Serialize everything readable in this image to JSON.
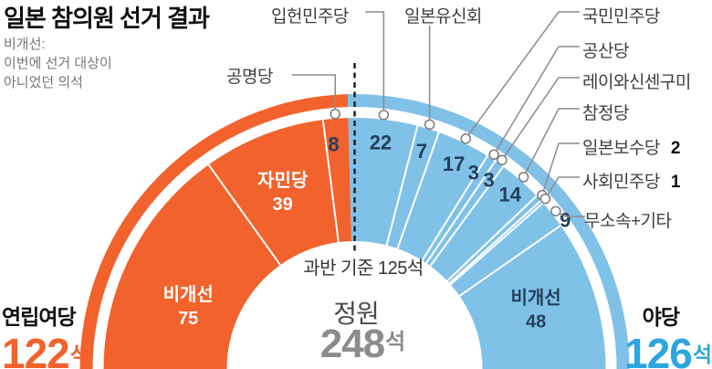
{
  "title": "일본 참의원 선거 결과",
  "note": {
    "line1": "비개선:",
    "line2": "이번에 선거 대상이",
    "line3": "아니었던 의석"
  },
  "units": {
    "seat": "석"
  },
  "center": {
    "majority_label": "과반 기준 125석",
    "capacity_label": "정원",
    "capacity_value": "248"
  },
  "colors": {
    "coalition_orange": "#f2622c",
    "opposition_fill": "#80c1e8",
    "opposition_accent": "#2ca6e0",
    "navy_text": "#23405c",
    "gray_text": "#8c8c8c",
    "leader_line": "#8c8c8c"
  },
  "chart_data": {
    "type": "half-donut",
    "title": "일본 참의원 선거 결과",
    "total_seats": 248,
    "majority_seats": 125,
    "majority_note": "과반 기준 125석",
    "groups": [
      {
        "name": "연립여당",
        "total": 122,
        "color": "#f2622c",
        "segments": [
          {
            "party": "비개선",
            "seats": 75
          },
          {
            "party": "자민당",
            "seats": 39
          },
          {
            "party": "공명당",
            "seats": 8
          }
        ]
      },
      {
        "name": "야당",
        "total": 126,
        "color": "#80c1e8",
        "segments": [
          {
            "party": "입헌민주당",
            "seats": 22
          },
          {
            "party": "일본유신회",
            "seats": 7
          },
          {
            "party": "국민민주당",
            "seats": 17
          },
          {
            "party": "공산당",
            "seats": 3
          },
          {
            "party": "레이와신센구미",
            "seats": 3
          },
          {
            "party": "참정당",
            "seats": 14
          },
          {
            "party": "일본보수당",
            "seats": 2
          },
          {
            "party": "사회민주당",
            "seats": 1
          },
          {
            "party": "무소속+기타",
            "seats": 9
          },
          {
            "party": "비개선",
            "seats": 48
          }
        ]
      }
    ]
  }
}
